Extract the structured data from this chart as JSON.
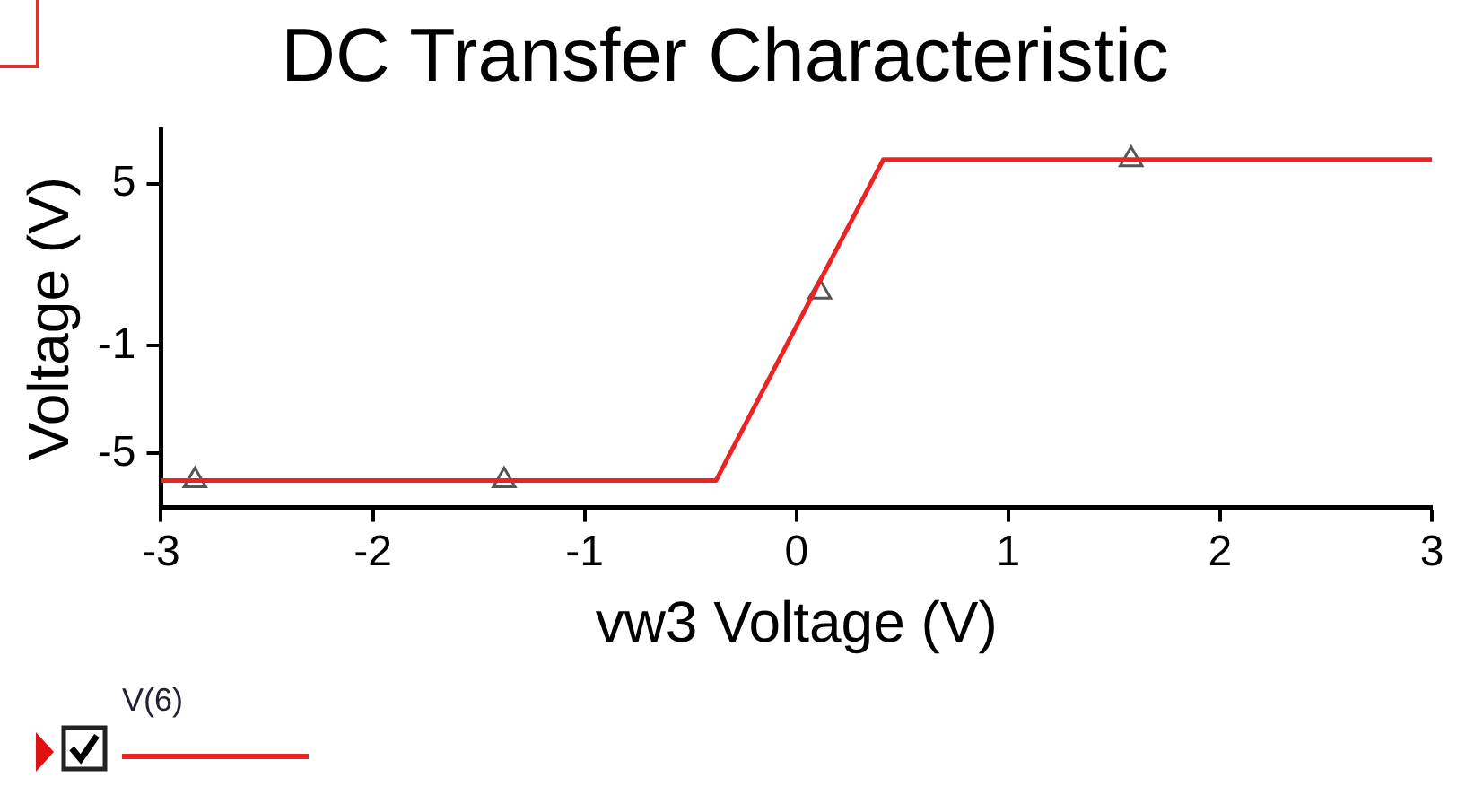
{
  "chart_data": {
    "type": "line",
    "title": "DC Transfer Characteristic",
    "xlabel": "vw3 Voltage (V)",
    "ylabel": "Voltage (V)",
    "xlim": [
      -3,
      3
    ],
    "xticks": [
      -3,
      -2,
      -1,
      0,
      1,
      2,
      3
    ],
    "ylim": [
      -7,
      7
    ],
    "yticks": [
      -5,
      -1,
      5
    ],
    "grid": false,
    "legend": "bottom left",
    "series": [
      {
        "name": "V(6)",
        "color": "#ee2222",
        "marker": "none",
        "x": [
          -3,
          -0.38,
          0.41,
          3
        ],
        "values": [
          -6.0,
          -6.0,
          5.9,
          5.9
        ]
      },
      {
        "color": "#555555",
        "type": "scatter",
        "marker": "triangle",
        "x": [
          -2.84,
          -1.38,
          0.11,
          1.58
        ],
        "values": [
          -6.0,
          -6.0,
          1.0,
          5.9
        ]
      }
    ]
  }
}
